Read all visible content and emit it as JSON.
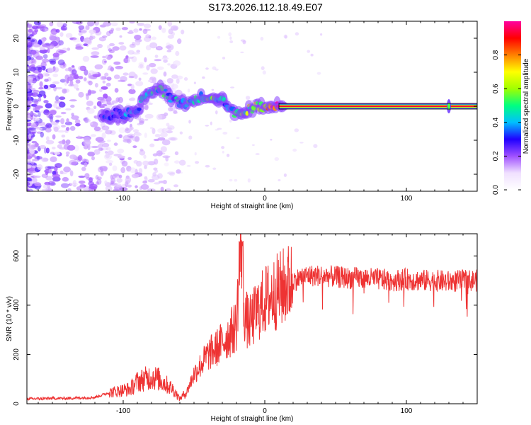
{
  "title": "S173.2026.112.18.49.E07",
  "chart_data": [
    {
      "type": "heatmap",
      "panel": "spectrogram",
      "xlabel": "Height of straight line (km)",
      "ylabel": "Frequency (Hz)",
      "xlim": [
        -168,
        150
      ],
      "ylim": [
        -25,
        25
      ],
      "xticks": [
        -100,
        0,
        100
      ],
      "xtick_labels": [
        "-100",
        "0",
        "100"
      ],
      "yticks": [
        -20,
        -10,
        0,
        10,
        20
      ],
      "ytick_labels": [
        "-20",
        "-10",
        "0",
        "10",
        "20"
      ],
      "colorbar": {
        "label": "Normalized spectral amplitude",
        "range": [
          0,
          1
        ],
        "ticks": [
          0,
          0.2,
          0.4,
          0.6,
          0.8
        ],
        "tick_labels": [
          "0.0",
          "0.2",
          "0.4",
          "0.6",
          "0.8"
        ],
        "colormap": [
          "#ffffff",
          "#f0e0ff",
          "#a050ff",
          "#2000ff",
          "#00c0ff",
          "#00ff80",
          "#a0ff00",
          "#ffff00",
          "#ff8000",
          "#ff0000",
          "#ff00a0"
        ]
      },
      "signal_track": {
        "x": [
          -115,
          -110,
          -105,
          -100,
          -95,
          -90,
          -85,
          -80,
          -75,
          -70,
          -65,
          -60,
          -55,
          -50,
          -45,
          -40,
          -35,
          -30,
          -25,
          -20,
          -15,
          -10,
          -5,
          0,
          5,
          10,
          15,
          20,
          30,
          40,
          50,
          60,
          70,
          80,
          90,
          100,
          110,
          120,
          130,
          140,
          148
        ],
        "y": [
          -2,
          -3,
          -2,
          -3,
          -2,
          -1,
          2,
          4,
          5,
          4,
          2,
          1,
          0,
          2,
          3,
          3,
          3,
          2,
          -1,
          -2,
          -1,
          -1,
          0,
          0,
          0,
          0,
          0,
          0,
          0,
          0,
          0,
          0,
          0,
          0,
          0,
          0,
          0,
          0,
          0,
          0,
          0
        ],
        "amplitude": [
          0.3,
          0.35,
          0.3,
          0.35,
          0.4,
          0.4,
          0.45,
          0.45,
          0.5,
          0.45,
          0.4,
          0.45,
          0.5,
          0.5,
          0.5,
          0.5,
          0.5,
          0.45,
          0.4,
          0.5,
          0.55,
          0.6,
          0.7,
          0.8,
          0.85,
          0.9,
          0.95,
          0.95,
          0.95,
          0.95,
          0.95,
          0.95,
          0.95,
          0.95,
          0.95,
          0.95,
          0.95,
          0.95,
          0.95,
          0.95,
          0.95
        ]
      }
    },
    {
      "type": "line",
      "panel": "snr",
      "xlabel": "Height of straight line (km)",
      "ylabel": "SNR (10 * v/v)",
      "xlim": [
        -168,
        150
      ],
      "ylim": [
        0,
        690
      ],
      "xticks": [
        -100,
        0,
        100
      ],
      "xtick_labels": [
        "-100",
        "0",
        "100"
      ],
      "yticks": [
        0,
        200,
        400,
        600
      ],
      "ytick_labels": [
        "0",
        "200",
        "400",
        "600"
      ],
      "line_color": "#ee3333",
      "series": [
        {
          "name": "SNR",
          "x": [
            -168,
            -160,
            -150,
            -140,
            -130,
            -120,
            -110,
            -100,
            -95,
            -90,
            -85,
            -80,
            -75,
            -70,
            -65,
            -60,
            -55,
            -50,
            -45,
            -40,
            -35,
            -30,
            -25,
            -20,
            -18,
            -16,
            -15,
            -14,
            -12,
            -10,
            -5,
            0,
            5,
            10,
            15,
            20,
            25,
            30,
            40,
            50,
            60,
            70,
            80,
            90,
            100,
            110,
            120,
            130,
            140,
            150
          ],
          "y": [
            20,
            20,
            22,
            22,
            24,
            26,
            45,
            55,
            60,
            90,
            100,
            110,
            100,
            80,
            60,
            20,
            50,
            120,
            160,
            200,
            220,
            250,
            280,
            320,
            560,
            680,
            420,
            360,
            330,
            330,
            380,
            420,
            440,
            460,
            480,
            500,
            510,
            520,
            520,
            515,
            510,
            510,
            505,
            500,
            505,
            500,
            500,
            495,
            500,
            500
          ]
        }
      ]
    }
  ]
}
